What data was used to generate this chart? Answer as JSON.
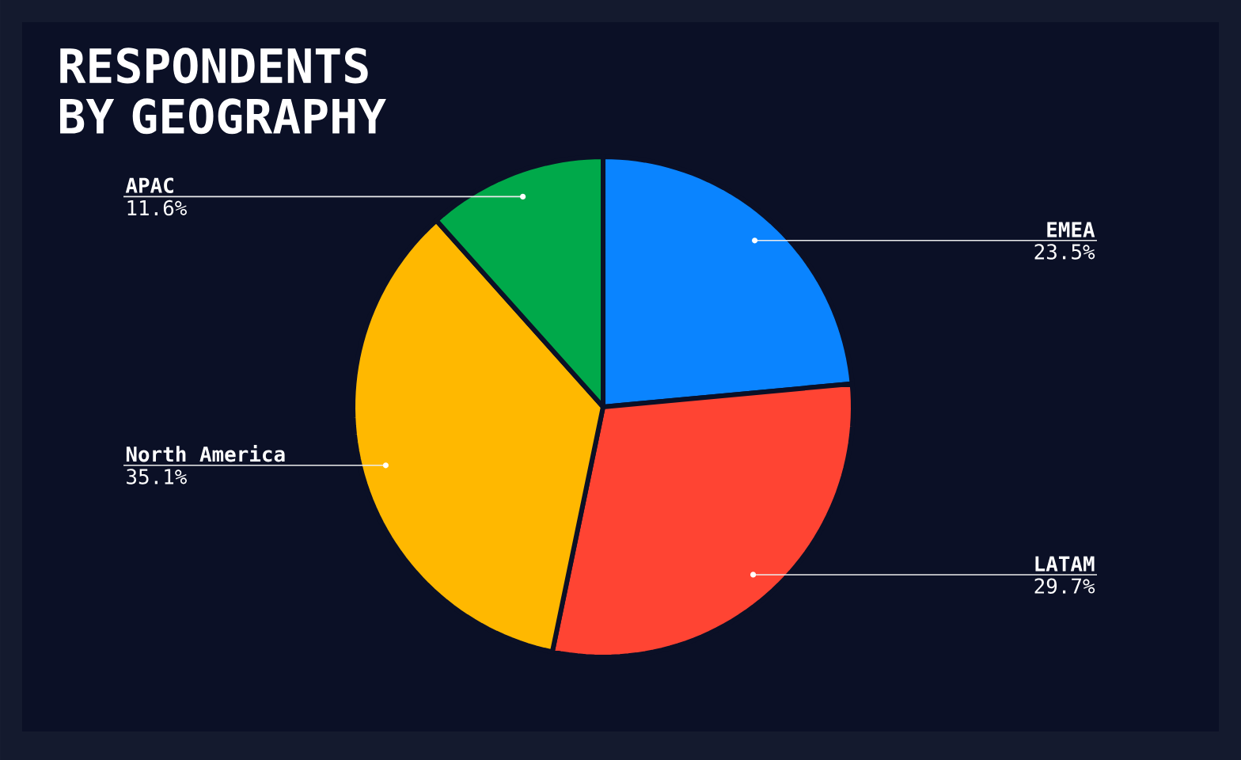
{
  "chart_data": {
    "type": "pie",
    "title": "RESPONDENTS BY GEOGRAPHY",
    "categories": [
      "EMEA",
      "LATAM",
      "North America",
      "APAC"
    ],
    "values": [
      23.5,
      29.7,
      35.1,
      11.6
    ],
    "value_labels": [
      "23.5%",
      "29.7%",
      "35.1%",
      "11.6%"
    ],
    "colors": [
      "#0a84ff",
      "#ff4433",
      "#ffb800",
      "#00a94a"
    ]
  }
}
